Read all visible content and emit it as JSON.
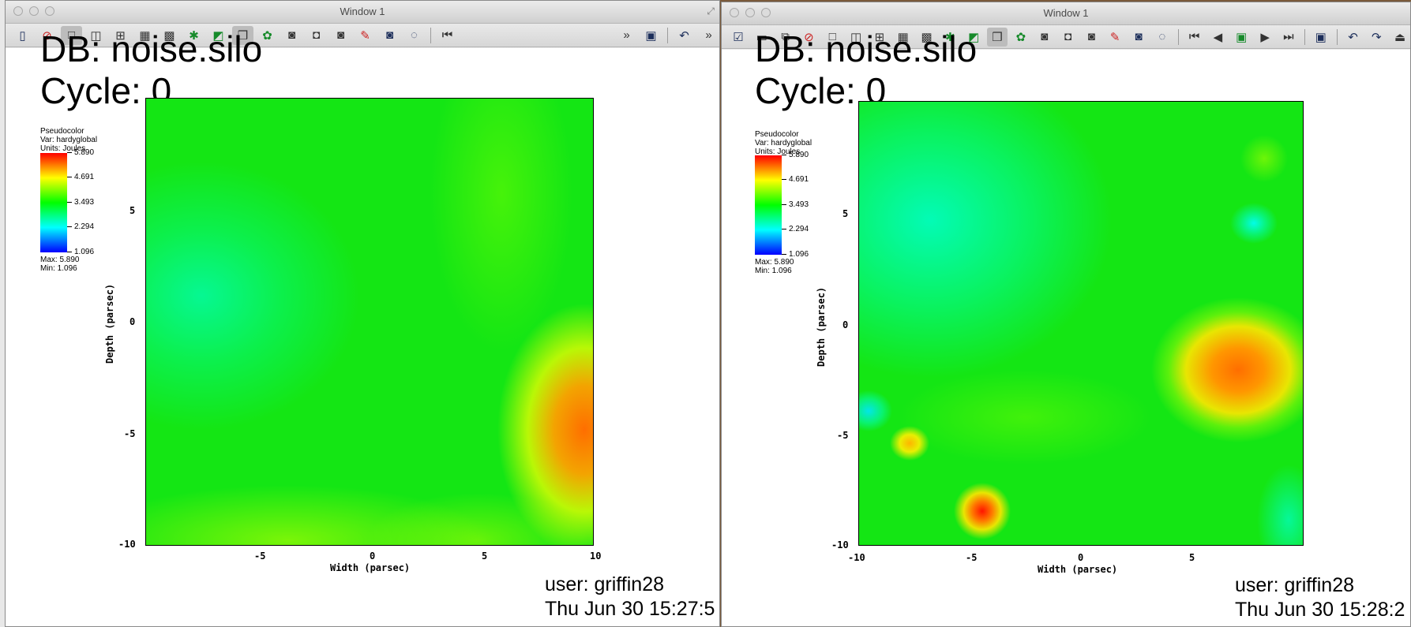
{
  "windows": [
    {
      "title": "Window 1",
      "db_label": "DB: noise.silo",
      "cycle_label": "Cycle: 0",
      "legend": {
        "plot_type": "Pseudocolor",
        "var": "Var: hardyglobal",
        "units": "Units: Joules",
        "ticks": [
          "5.890",
          "4.691",
          "3.493",
          "2.294",
          "1.096"
        ],
        "max": "Max:  5.890",
        "min": "Min:  1.096"
      },
      "x_ticks": [
        "-5",
        "0",
        "5",
        "10"
      ],
      "y_ticks": [
        "5",
        "0",
        "-5",
        "-10"
      ],
      "xlabel": "Width (parsec)",
      "ylabel": "Depth (parsec)",
      "user": "user: griffin28",
      "timestamp": "Thu Jun 30 15:27:5"
    },
    {
      "title": "Window 1",
      "db_label": "DB: noise.silo",
      "cycle_label": "Cycle: 0",
      "legend": {
        "plot_type": "Pseudocolor",
        "var": "Var: hardyglobal",
        "units": "Units: Joules",
        "ticks": [
          "5.890",
          "4.691",
          "3.493",
          "2.294",
          "1.096"
        ],
        "max": "Max:  5.890",
        "min": "Min:  1.096"
      },
      "x_ticks": [
        "-10",
        "-5",
        "0",
        "5"
      ],
      "y_ticks": [
        "5",
        "0",
        "-5",
        "-10"
      ],
      "xlabel": "Width (parsec)",
      "ylabel": "Depth (parsec)",
      "user": "user: griffin28",
      "timestamp": "Thu Jun 30 15:28:2"
    }
  ],
  "toolbar1_icons": [
    "import-icon",
    "clear-icon",
    "layout-1x1-icon",
    "layout-1x2-icon",
    "layout-2x2-icon",
    "layout-2x3-icon",
    "layout-3x3-icon",
    "lock-view-icon",
    "lock-time-icon",
    "perspective-icon",
    "green-camera-icon",
    "copy-view-icon",
    "save-camera-icon",
    "lock-camera-icon",
    "pick-icon",
    "recenter-icon",
    "spin-icon",
    "rewind-icon",
    "more-icon",
    "command-icon",
    "undo-icon"
  ],
  "toolbar2_icons": [
    "navigate-icon",
    "zoom-icon",
    "zone-pick-icon",
    "node-pick-icon",
    "spreadsheet-pick-icon",
    "lineout-icon",
    "point-tool-icon",
    "line-tool-icon",
    "plane-tool-icon",
    "box-tool-icon",
    "sphere-tool-icon",
    "axis-restrict-icon"
  ],
  "colors": {
    "accent": "#1c2e5a"
  }
}
